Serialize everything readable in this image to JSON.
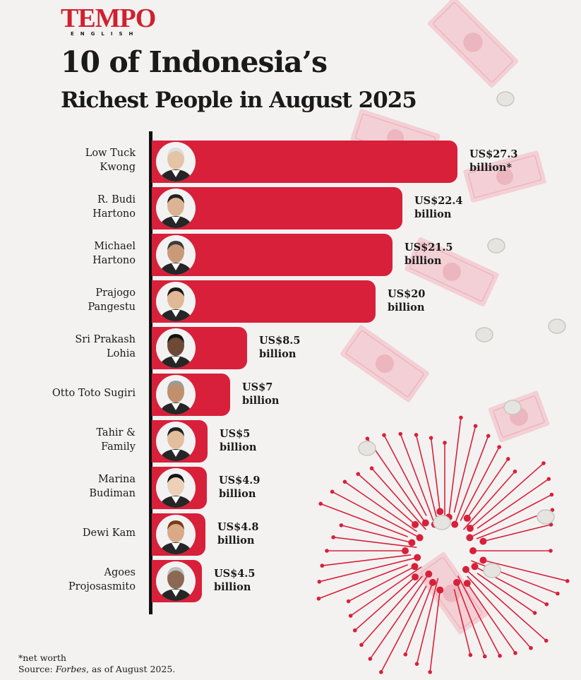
{
  "header": {
    "logo": "TEMPO",
    "logo_sub": "ENGLISH",
    "title_line1": "10 of Indonesia’s",
    "title_line2": "Richest People in August 2025"
  },
  "chart_data": {
    "type": "bar",
    "orientation": "horizontal",
    "title": "10 of Indonesia’s Richest People in August 2025",
    "unit": "US$ billion",
    "categories": [
      "Low Tuck Kwong",
      "R. Budi Hartono",
      "Michael Hartono",
      "Prajogo Pangestu",
      "Sri Prakash Lohia",
      "Otto Toto Sugiri",
      "Tahir & Family",
      "Marina Budiman",
      "Dewi Kam",
      "Agoes Projosasmito"
    ],
    "values": [
      27.3,
      22.4,
      21.5,
      20,
      8.5,
      7,
      5,
      4.9,
      4.8,
      4.5
    ],
    "labels": [
      {
        "name": [
          "Low Tuck",
          "Kwong"
        ],
        "value": [
          "US$27.3",
          "billion*"
        ]
      },
      {
        "name": [
          "R. Budi",
          "Hartono"
        ],
        "value": [
          "US$22.4",
          "billion"
        ]
      },
      {
        "name": [
          "Michael",
          "Hartono"
        ],
        "value": [
          "US$21.5",
          "billion"
        ]
      },
      {
        "name": [
          "Prajogo",
          "Pangestu"
        ],
        "value": [
          "US$20",
          "billion"
        ]
      },
      {
        "name": [
          "Sri Prakash",
          "Lohia"
        ],
        "value": [
          "US$8.5",
          "billion"
        ]
      },
      {
        "name": [
          "Otto Toto Sugiri"
        ],
        "value": [
          "US$7",
          "billion"
        ]
      },
      {
        "name": [
          "Tahir &",
          "Family"
        ],
        "value": [
          "US$5",
          "billion"
        ]
      },
      {
        "name": [
          "Marina",
          "Budiman"
        ],
        "value": [
          "US$4.9",
          "billion"
        ]
      },
      {
        "name": [
          "Dewi Kam"
        ],
        "value": [
          "US$4.8",
          "billion"
        ]
      },
      {
        "name": [
          "Agoes",
          "Projosasmito"
        ],
        "value": [
          "US$4.5",
          "billion"
        ]
      }
    ],
    "xlim": [
      0,
      27.3
    ],
    "grid": false,
    "bar_color": "#d8203a",
    "bar_label_position": "right of bar"
  },
  "footer": {
    "note": "*net worth",
    "source_prefix": "Source: ",
    "source_name": "Forbes",
    "source_suffix": ", as of August 2025."
  },
  "colors": {
    "accent": "#d0202e",
    "bar": "#d8203a",
    "background": "#f3f2f1",
    "banknote": "#f4c5cc"
  }
}
